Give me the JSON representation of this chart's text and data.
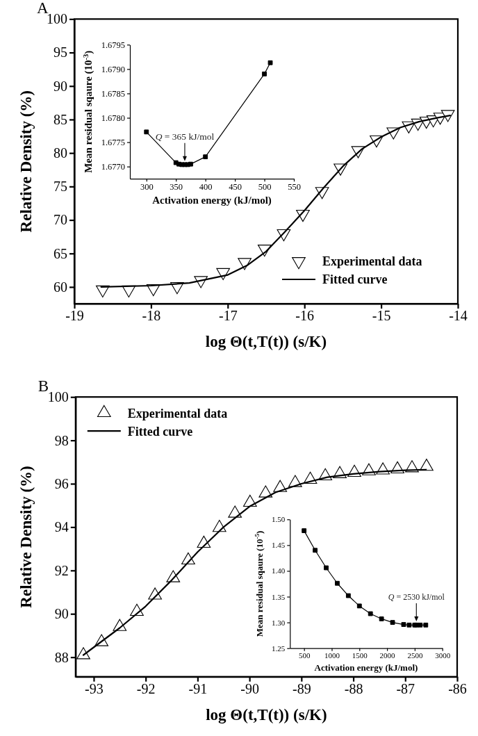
{
  "chart_data": [
    {
      "type": "scatter",
      "title": "A",
      "xlabel": "log Θ(t,T(t)) (s/K)",
      "ylabel": "Relative Density (%)",
      "xlim": [
        -19,
        -14
      ],
      "ylim": [
        57.5,
        100
      ],
      "xticks": [
        -19,
        -18,
        -17,
        -16,
        -15,
        -14
      ],
      "yticks": [
        60,
        65,
        70,
        75,
        80,
        85,
        90,
        95,
        100
      ],
      "legend": "bottom right",
      "series": [
        {
          "name": "Experimental data",
          "marker": "triangle-down",
          "color": "#000000",
          "x": [
            -18.63,
            -18.29,
            -17.97,
            -17.66,
            -17.35,
            -17.06,
            -16.78,
            -16.52,
            -16.27,
            -16.02,
            -15.77,
            -15.53,
            -15.3,
            -15.06,
            -14.84,
            -14.64,
            -14.52,
            -14.41,
            -14.32,
            -14.23,
            -14.13
          ],
          "values": [
            59.6,
            59.6,
            59.8,
            60.1,
            61.0,
            62.2,
            63.7,
            65.7,
            68.0,
            70.9,
            74.3,
            77.8,
            80.4,
            82.0,
            83.2,
            84.1,
            84.5,
            84.8,
            85.0,
            85.4,
            85.8
          ]
        },
        {
          "name": "Fitted curve",
          "type": "line",
          "marker": "none",
          "color": "#000000",
          "x": [
            -18.65,
            -18,
            -17.5,
            -17,
            -16.75,
            -16.5,
            -16.25,
            -16,
            -15.75,
            -15.5,
            -15.25,
            -15,
            -14.75,
            -14.5,
            -14.25,
            -14.1
          ],
          "values": [
            60.0,
            60.2,
            60.6,
            61.8,
            63.2,
            65.3,
            68.3,
            71.4,
            74.8,
            78.0,
            80.6,
            82.4,
            83.8,
            84.7,
            85.3,
            85.6
          ]
        }
      ]
    },
    {
      "type": "line",
      "xlabel": "Activation energy (kJ/mol)",
      "ylabel": "Mean residual sqaure (10$^{-3}$)",
      "xlim": [
        272,
        550
      ],
      "ylim": [
        1.67675,
        1.6795
      ],
      "xticks": [
        300,
        350,
        400,
        450,
        500,
        550
      ],
      "yticks": [
        {
          "value": 1.677,
          "label": "1.6770"
        },
        1.6775,
        {
          "value": 1.678,
          "label": "1.6780"
        },
        1.6785,
        {
          "value": 1.679,
          "label": "1.6790"
        },
        1.6795
      ],
      "marker": "square",
      "annotations": [
        {
          "text": "Q = 365 kJ/mol",
          "x": 365,
          "y": 1.67704
        }
      ],
      "series": [
        {
          "color": "#000000",
          "x": [
            300,
            350,
            355,
            360,
            365,
            370,
            375,
            400,
            500,
            510
          ],
          "values": [
            1.67771,
            1.67708,
            1.67705,
            1.67704,
            1.67704,
            1.67704,
            1.67705,
            1.6772,
            1.6789,
            1.67913
          ]
        }
      ]
    },
    {
      "type": "scatter",
      "title": "B",
      "xlabel": "log Θ(t,T(t)) (s/K)",
      "ylabel": "Relative Density (%)",
      "xlim": [
        -93.35,
        -86
      ],
      "ylim": [
        87.1,
        100
      ],
      "xticks": [
        -93,
        -92,
        -91,
        -90,
        -89,
        -88,
        -87,
        -86
      ],
      "yticks": [
        88,
        90,
        92,
        94,
        96,
        98,
        100
      ],
      "legend": "top left",
      "series": [
        {
          "name": "Experimental data",
          "marker": "triangle",
          "color": "#000000",
          "x": [
            -93.2,
            -92.85,
            -92.5,
            -92.17,
            -91.82,
            -91.47,
            -91.18,
            -90.88,
            -90.58,
            -90.28,
            -89.99,
            -89.69,
            -89.41,
            -89.12,
            -88.83,
            -88.54,
            -88.26,
            -87.98,
            -87.7,
            -87.43,
            -87.15,
            -86.87,
            -86.59
          ],
          "values": [
            88.1,
            88.7,
            89.4,
            90.1,
            90.85,
            91.65,
            92.47,
            93.24,
            93.97,
            94.63,
            95.13,
            95.56,
            95.81,
            96.04,
            96.19,
            96.35,
            96.45,
            96.51,
            96.58,
            96.62,
            96.67,
            96.72,
            96.79
          ]
        },
        {
          "name": "Fitted curve",
          "type": "line",
          "marker": "none",
          "color": "#000000",
          "x": [
            -93.2,
            -92.5,
            -92,
            -91.5,
            -91,
            -90.5,
            -90,
            -89.5,
            -89,
            -88.5,
            -88,
            -87.5,
            -87,
            -86.6
          ],
          "values": [
            88.1,
            89.35,
            90.35,
            91.55,
            92.85,
            94.0,
            94.95,
            95.6,
            96.0,
            96.3,
            96.45,
            96.56,
            96.62,
            96.65
          ]
        }
      ]
    },
    {
      "type": "line",
      "xlabel": "Activation energy (kJ/mol)",
      "ylabel": "Mean residual sqaure (10$^{-5}$)",
      "xlim": [
        244,
        3000
      ],
      "ylim": [
        1.25,
        1.5
      ],
      "xticks": [
        500,
        1000,
        1500,
        2000,
        2500,
        3000
      ],
      "yticks": [
        1.25,
        {
          "value": 1.3,
          "label": "1.30"
        },
        1.35,
        {
          "value": 1.4,
          "label": "1.40"
        },
        1.45,
        {
          "value": 1.5,
          "label": "1.50"
        }
      ],
      "marker": "square",
      "annotations": [
        {
          "text": "Q = 2530 kJ/mol",
          "x": 2530,
          "y": 1.2953
        }
      ],
      "series": [
        {
          "color": "#000000",
          "x": [
            500,
            700,
            900,
            1100,
            1300,
            1500,
            1700,
            1900,
            2100,
            2300,
            2400,
            2500,
            2530,
            2600,
            2700
          ],
          "values": [
            1.478,
            1.44,
            1.406,
            1.376,
            1.352,
            1.332,
            1.317,
            1.307,
            1.3,
            1.296,
            1.295,
            1.295,
            1.295,
            1.295,
            1.295
          ]
        }
      ]
    }
  ]
}
